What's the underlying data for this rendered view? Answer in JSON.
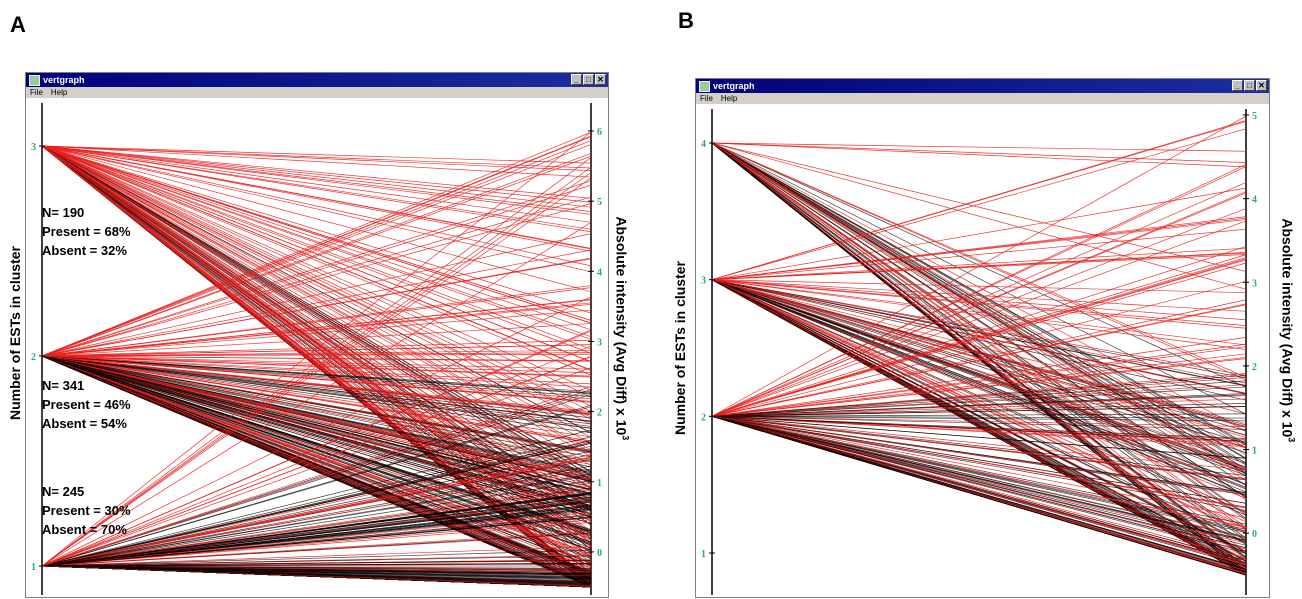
{
  "panels": [
    {
      "letter": "A",
      "window_title": "vertgraph",
      "menu": [
        "File",
        "Help"
      ],
      "left_axis_label": "Number of ESTs in cluster",
      "right_axis_label": "Absolute intensity (Avg Diff) x 10",
      "right_axis_exponent": "3",
      "stats": [
        {
          "n": "N= 190",
          "present": "Present = 68%",
          "absent": "Absent =  32%"
        },
        {
          "n": "N= 341",
          "present": "Present = 46%",
          "absent": "Absent =  54%"
        },
        {
          "n": "N= 245",
          "present": "Present = 30%",
          "absent": "Absent = 70%"
        }
      ]
    },
    {
      "letter": "B",
      "window_title": "vertgraph",
      "menu": [
        "File",
        "Help"
      ],
      "left_axis_label": "Number of ESTs in cluster",
      "right_axis_label": "Absolute intensity (Avg Diff) x 10",
      "right_axis_exponent": "3",
      "stats": []
    }
  ],
  "chart_data": [
    {
      "type": "parallel-coordinates",
      "title": "",
      "left_axis": {
        "label": "Number of ESTs in cluster",
        "ticks": [
          "1",
          "2",
          "3"
        ],
        "range": [
          1,
          3
        ]
      },
      "right_axis": {
        "label": "Absolute intensity (Avg Diff) x 10^3",
        "ticks": [
          "0",
          "1",
          "2",
          "3",
          "4",
          "5",
          "6"
        ],
        "range": [
          -0.5,
          6
        ]
      },
      "colors": {
        "present": "#e8201e",
        "absent": "#000000",
        "tick_label": "#2aa87a"
      },
      "groups": [
        {
          "ests": 3,
          "n": 190,
          "present_pct": 68,
          "absent_pct": 32
        },
        {
          "ests": 2,
          "n": 341,
          "present_pct": 46,
          "absent_pct": 54
        },
        {
          "ests": 1,
          "n": 245,
          "present_pct": 30,
          "absent_pct": 70
        }
      ]
    },
    {
      "type": "parallel-coordinates",
      "title": "",
      "left_axis": {
        "label": "Number of ESTs in cluster",
        "ticks": [
          "1",
          "2",
          "3",
          "4"
        ],
        "range": [
          1,
          4
        ]
      },
      "right_axis": {
        "label": "Absolute intensity (Avg Diff) x 10^3",
        "ticks": [
          "0",
          "1",
          "2",
          "3",
          "4",
          "5"
        ],
        "range": [
          -0.5,
          5
        ]
      },
      "colors": {
        "present": "#e8201e",
        "absent": "#000000",
        "tick_label": "#2aa87a"
      },
      "groups": [
        {
          "ests": 4
        },
        {
          "ests": 3
        },
        {
          "ests": 2
        }
      ]
    }
  ]
}
